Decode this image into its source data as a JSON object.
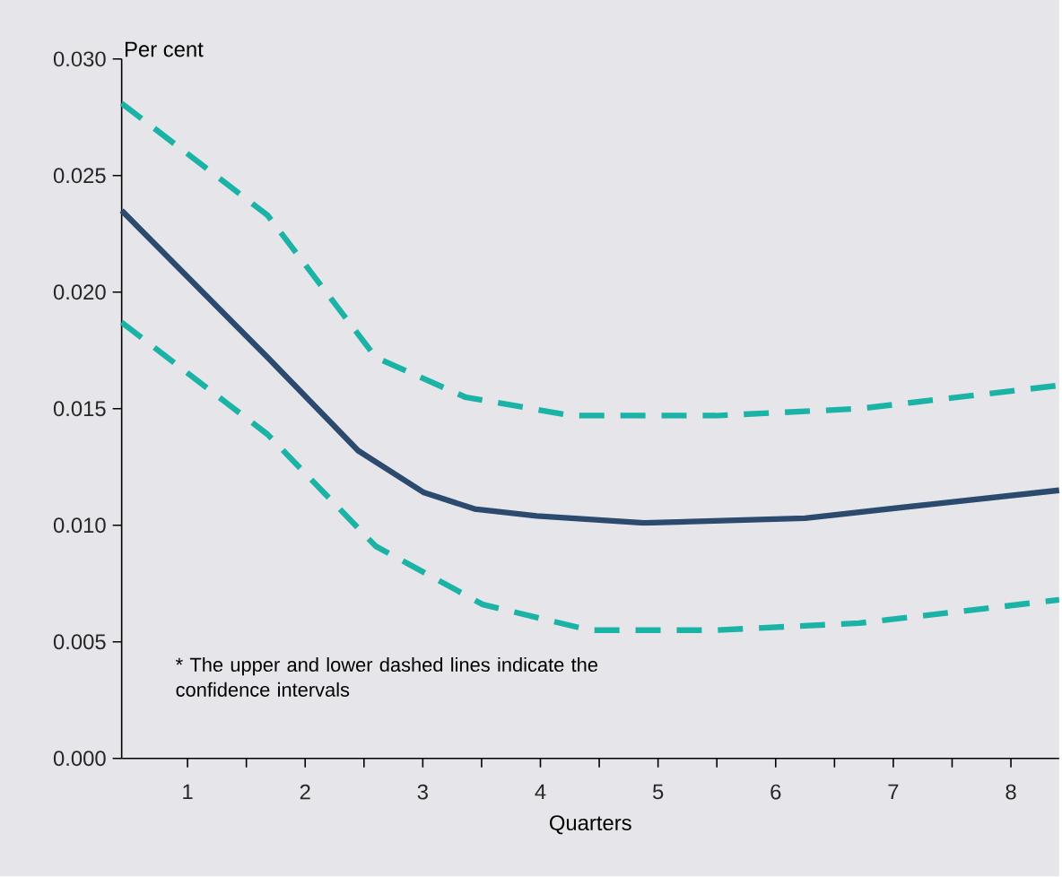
{
  "chart_data": {
    "type": "line",
    "ylabel": "Per cent",
    "xlabel": "Quarters",
    "xlim": [
      0.44,
      8.41
    ],
    "xticks": [
      {
        "value": 1,
        "label": "1"
      },
      {
        "value": 1.5,
        "label": null
      },
      {
        "value": 2,
        "label": "2"
      },
      {
        "value": 2.5,
        "label": null
      },
      {
        "value": 3,
        "label": "3"
      },
      {
        "value": 3.5,
        "label": null
      },
      {
        "value": 4,
        "label": "4"
      },
      {
        "value": 4.5,
        "label": null
      },
      {
        "value": 5,
        "label": "5"
      },
      {
        "value": 5.5,
        "label": null
      },
      {
        "value": 6,
        "label": "6"
      },
      {
        "value": 6.5,
        "label": null
      },
      {
        "value": 7,
        "label": "7"
      },
      {
        "value": 7.5,
        "label": null
      },
      {
        "value": 8,
        "label": "8"
      }
    ],
    "ylim": [
      0,
      0.03
    ],
    "yticks": [
      {
        "value": 0,
        "label": "0.000"
      },
      {
        "value": 0.005,
        "label": "0.005"
      },
      {
        "value": 0.01,
        "label": "0.010"
      },
      {
        "value": 0.015,
        "label": "0.015"
      },
      {
        "value": 0.02,
        "label": "0.020"
      },
      {
        "value": 0.025,
        "label": "0.025"
      },
      {
        "value": 0.03,
        "label": "0.030"
      }
    ],
    "series": [
      {
        "color": "#1ab3a6",
        "line_style": "dashed",
        "x": [
          0.44,
          1.68,
          2.6,
          3.36,
          4.27,
          5.49,
          6.71,
          8.41
        ],
        "values": [
          0.0281,
          0.0233,
          0.0172,
          0.0155,
          0.0147,
          0.0147,
          0.015,
          0.016
        ]
      },
      {
        "color": "#1ab3a6",
        "line_style": "dashed",
        "x": [
          0.44,
          1.68,
          2.6,
          3.51,
          4.42,
          5.49,
          6.71,
          8.41
        ],
        "values": [
          0.0187,
          0.0139,
          0.0091,
          0.0066,
          0.0055,
          0.0055,
          0.0058,
          0.0068
        ]
      },
      {
        "color": "#2b4a6e",
        "line_style": "solid",
        "x": [
          0.44,
          1.68,
          2.45,
          3.01,
          3.44,
          3.97,
          4.88,
          6.25,
          7.32,
          8.41
        ],
        "values": [
          0.0235,
          0.0172,
          0.0132,
          0.0114,
          0.0107,
          0.0104,
          0.0101,
          0.0103,
          0.0109,
          0.0115
        ]
      }
    ],
    "annotations": [
      "* The upper and lower dashed lines indicate the confidence intervals"
    ]
  }
}
